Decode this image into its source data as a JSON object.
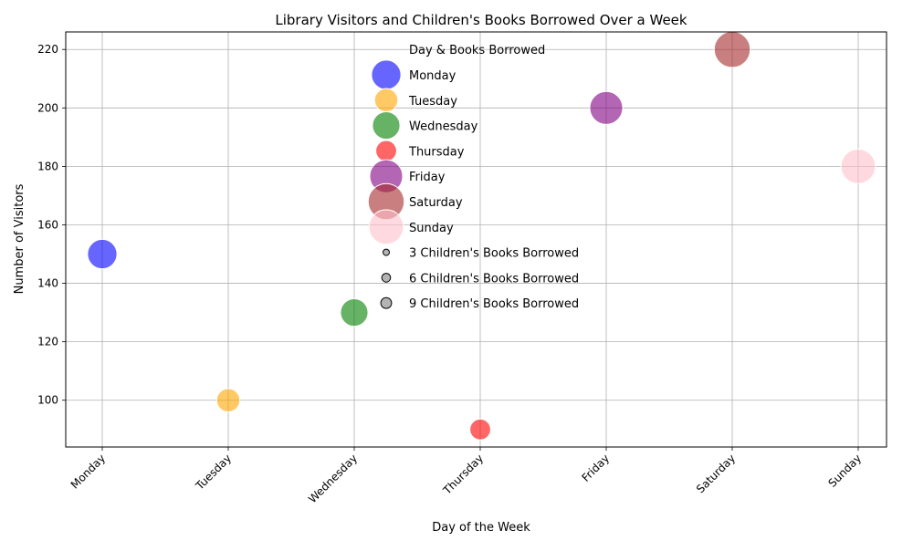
{
  "chart_data": {
    "type": "scatter",
    "title": "Library Visitors and Children's Books Borrowed Over a Week",
    "xlabel": "Day of the Week",
    "ylabel": "Number of Visitors",
    "categories": [
      "Monday",
      "Tuesday",
      "Wednesday",
      "Thursday",
      "Friday",
      "Saturday",
      "Sunday"
    ],
    "ylim": [
      84,
      226
    ],
    "yticks": [
      100,
      120,
      140,
      160,
      180,
      200,
      220
    ],
    "grid": true,
    "legend_title": "Day & Books Borrowed",
    "legend_placement": "upper-center",
    "series": [
      {
        "name": "Monday",
        "x": "Monday",
        "visitors": 150,
        "books": 8,
        "color": "#0000ff"
      },
      {
        "name": "Tuesday",
        "x": "Tuesday",
        "visitors": 100,
        "books": 5,
        "color": "#ffa500"
      },
      {
        "name": "Wednesday",
        "x": "Wednesday",
        "visitors": 130,
        "books": 7,
        "color": "#008000"
      },
      {
        "name": "Thursday",
        "x": "Thursday",
        "visitors": 90,
        "books": 4,
        "color": "#ff0000"
      },
      {
        "name": "Friday",
        "x": "Friday",
        "visitors": 200,
        "books": 10,
        "color": "#800080"
      },
      {
        "name": "Saturday",
        "x": "Saturday",
        "visitors": 220,
        "books": 12,
        "color": "#a52a2a"
      },
      {
        "name": "Sunday",
        "x": "Sunday",
        "visitors": 180,
        "books": 11,
        "color": "#ffc0cb"
      }
    ],
    "size_legend": [
      {
        "label": "3 Children's Books Borrowed",
        "books": 3
      },
      {
        "label": "6 Children's Books Borrowed",
        "books": 6
      },
      {
        "label": "9 Children's Books Borrowed",
        "books": 9
      }
    ]
  }
}
